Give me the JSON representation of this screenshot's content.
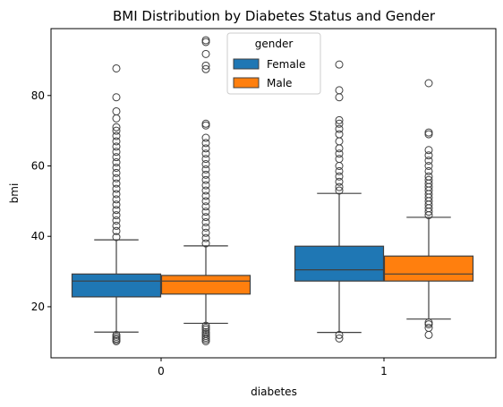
{
  "chart_data": {
    "type": "box",
    "title": "BMI Distribution by Diabetes Status and Gender",
    "xlabel": "diabetes",
    "ylabel": "bmi",
    "categories": [
      "0",
      "1"
    ],
    "y_ticks": [
      20,
      40,
      60,
      80
    ],
    "ylim": [
      5.5,
      99
    ],
    "grid": false,
    "legend": {
      "title": "gender",
      "placement": "top-center"
    },
    "series": [
      {
        "name": "Female",
        "color": "#1f77b4",
        "boxes": [
          {
            "category": "0",
            "q1": 22.8,
            "median": 27.3,
            "q3": 29.3,
            "whisker_low": 12.8,
            "whisker_high": 39.0,
            "outliers_high": [
              39.8,
              41.5,
              43.0,
              44.5,
              46.0,
              47.5,
              49.0,
              50.5,
              52.0,
              53.5,
              55.0,
              56.5,
              58.0,
              59.5,
              61.0,
              62.5,
              64.0,
              65.5,
              67.0,
              68.5,
              70.0,
              71.0,
              73.5,
              75.5,
              79.5,
              87.7
            ],
            "outliers_low": [
              10.2,
              10.6,
              11.0,
              11.5,
              12.0
            ]
          },
          {
            "category": "1",
            "q1": 27.3,
            "median": 30.5,
            "q3": 37.2,
            "whisker_low": 12.7,
            "whisker_high": 52.2,
            "outliers_high": [
              53.0,
              54.0,
              55.5,
              57.0,
              58.5,
              60.0,
              62.0,
              63.5,
              65.0,
              67.0,
              69.0,
              70.5,
              72.0,
              73.0,
              79.5,
              81.5,
              88.8
            ],
            "outliers_low": [
              11.0,
              12.0
            ]
          }
        ]
      },
      {
        "name": "Male",
        "color": "#ff7f0e",
        "boxes": [
          {
            "category": "0",
            "q1": 23.6,
            "median": 27.3,
            "q3": 28.9,
            "whisker_low": 15.3,
            "whisker_high": 37.3,
            "outliers_high": [
              38.0,
              39.5,
              41.0,
              42.5,
              44.0,
              45.5,
              47.0,
              48.5,
              50.0,
              51.5,
              53.0,
              54.5,
              56.0,
              57.5,
              59.0,
              60.5,
              62.0,
              63.5,
              65.0,
              66.5,
              68.0,
              71.5,
              72.0,
              87.5,
              88.5,
              91.8,
              95.2,
              95.7
            ],
            "outliers_low": [
              10.2,
              10.7,
              11.2,
              11.7,
              12.3,
              12.8,
              13.5,
              14.0,
              14.6
            ]
          },
          {
            "category": "1",
            "q1": 27.3,
            "median": 29.3,
            "q3": 34.4,
            "whisker_low": 16.5,
            "whisker_high": 45.4,
            "outliers_high": [
              46.0,
              47.0,
              48.0,
              49.0,
              50.0,
              51.0,
              52.0,
              53.0,
              54.0,
              55.0,
              56.0,
              57.0,
              58.5,
              60.0,
              61.5,
              63.0,
              64.5,
              69.0,
              69.5,
              83.5
            ],
            "outliers_low": [
              15.5,
              15.0,
              14.0,
              12.0
            ]
          }
        ]
      }
    ]
  }
}
